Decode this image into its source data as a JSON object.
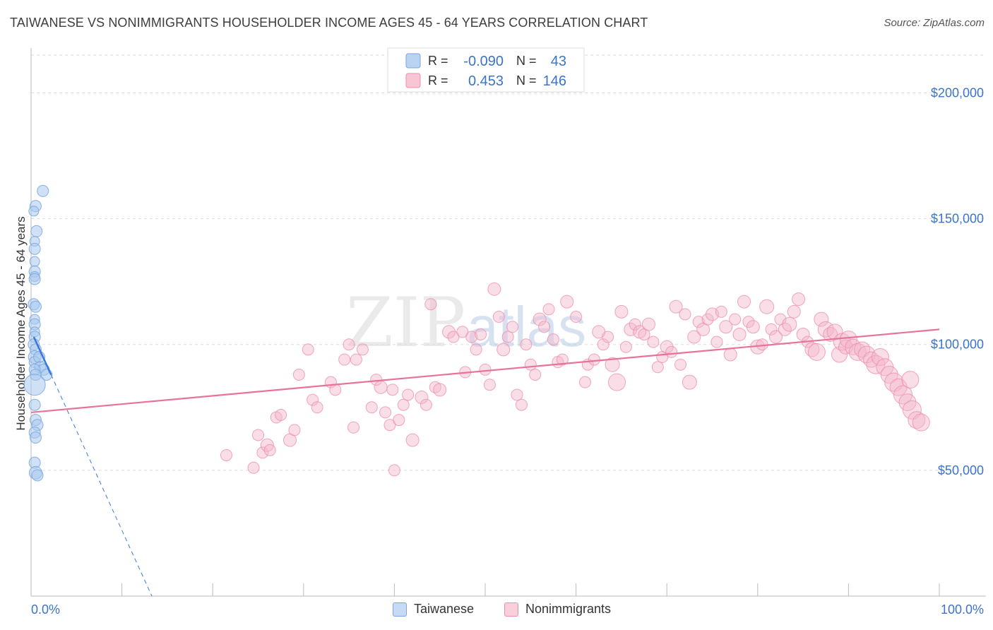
{
  "header": {
    "title": "TAIWANESE VS NONIMMIGRANTS HOUSEHOLDER INCOME AGES 45 - 64 YEARS CORRELATION CHART",
    "source": "Source: ZipAtlas.com"
  },
  "colors": {
    "blue_fill": "#a9c8ef",
    "blue_stroke": "#7aa7df",
    "blue_line": "#3b78d8",
    "pink_fill": "#f5b6c9",
    "pink_stroke": "#ee8fae",
    "pink_line": "#e8739a",
    "axis_text": "#3b74c9",
    "grid": "#dddddd"
  },
  "legend": {
    "rows": [
      {
        "r_label": "R =",
        "r_value": "-0.090",
        "n_label": "N =",
        "n_value": "43"
      },
      {
        "r_label": "R =",
        "r_value": "0.453",
        "n_label": "N =",
        "n_value": "146"
      }
    ]
  },
  "bottom_legend": [
    {
      "label": "Taiwanese"
    },
    {
      "label": "Nonimmigrants"
    }
  ],
  "chart_data": {
    "type": "scatter",
    "xlabel": "",
    "ylabel": "Householder Income Ages 45 - 64 years",
    "xlim": [
      0,
      100
    ],
    "ylim": [
      0,
      215000
    ],
    "x_tick_labels": [
      "0.0%",
      "100.0%"
    ],
    "y_ticks": [
      50000,
      100000,
      150000,
      200000
    ],
    "y_tick_labels": [
      "$50,000",
      "$100,000",
      "$150,000",
      "$200,000"
    ],
    "grid": true,
    "legend_position": "top-center",
    "watermark": "ZIPatlas",
    "series": [
      {
        "name": "Taiwanese",
        "r": -0.09,
        "n": 43,
        "trend": {
          "x": [
            0.3,
            2.2
          ],
          "y": [
            103000,
            88000
          ]
        },
        "trend_extension": {
          "x": [
            2.2,
            13.3
          ],
          "y": [
            88000,
            0
          ]
        },
        "points": [
          [
            1.3,
            161000,
            8
          ],
          [
            0.5,
            155000,
            8
          ],
          [
            0.3,
            153000,
            7
          ],
          [
            0.6,
            145000,
            8
          ],
          [
            0.4,
            141000,
            7
          ],
          [
            0.4,
            138000,
            8
          ],
          [
            0.4,
            133000,
            7
          ],
          [
            0.4,
            129000,
            8
          ],
          [
            0.4,
            127000,
            7
          ],
          [
            0.4,
            126000,
            8
          ],
          [
            0.3,
            116000,
            8
          ],
          [
            0.5,
            115000,
            8
          ],
          [
            0.4,
            110000,
            7
          ],
          [
            0.4,
            108000,
            8
          ],
          [
            0.4,
            105000,
            7
          ],
          [
            0.4,
            103000,
            8
          ],
          [
            0.3,
            100000,
            8
          ],
          [
            0.5,
            98000,
            8
          ],
          [
            0.4,
            95000,
            9
          ],
          [
            0.4,
            93000,
            8
          ],
          [
            0.9,
            95000,
            8
          ],
          [
            1.0,
            91000,
            8
          ],
          [
            1.4,
            90000,
            8
          ],
          [
            0.4,
            90000,
            8
          ],
          [
            0.5,
            88000,
            8
          ],
          [
            1.7,
            88000,
            8
          ],
          [
            0.4,
            84000,
            15
          ],
          [
            0.4,
            76000,
            8
          ],
          [
            0.5,
            70000,
            8
          ],
          [
            0.7,
            68000,
            8
          ],
          [
            0.4,
            65000,
            8
          ],
          [
            0.5,
            63000,
            8
          ],
          [
            0.4,
            53000,
            8
          ],
          [
            0.5,
            49000,
            9
          ],
          [
            0.7,
            48000,
            8
          ]
        ]
      },
      {
        "name": "Nonimmigrants",
        "r": 0.453,
        "n": 146,
        "trend": {
          "x": [
            0,
            100
          ],
          "y": [
            73000,
            106000
          ]
        },
        "points": [
          [
            21.5,
            56000,
            8
          ],
          [
            24.5,
            51000,
            8
          ],
          [
            25.0,
            64000,
            8
          ],
          [
            25.5,
            57000,
            8
          ],
          [
            26.0,
            60000,
            9
          ],
          [
            26.3,
            58000,
            8
          ],
          [
            27.0,
            71000,
            8
          ],
          [
            27.5,
            72000,
            8
          ],
          [
            28.5,
            62000,
            9
          ],
          [
            29.0,
            66000,
            8
          ],
          [
            29.5,
            88000,
            8
          ],
          [
            30.5,
            98000,
            8
          ],
          [
            31.0,
            78000,
            8
          ],
          [
            31.5,
            75000,
            8
          ],
          [
            33.0,
            85000,
            8
          ],
          [
            33.5,
            82000,
            8
          ],
          [
            34.5,
            94000,
            8
          ],
          [
            35.0,
            100000,
            8
          ],
          [
            35.5,
            67000,
            8
          ],
          [
            35.8,
            94000,
            8
          ],
          [
            36.5,
            98000,
            8
          ],
          [
            37.5,
            75000,
            8
          ],
          [
            38.0,
            86000,
            8
          ],
          [
            38.5,
            83000,
            9
          ],
          [
            39.0,
            73000,
            8
          ],
          [
            39.5,
            68000,
            8
          ],
          [
            39.8,
            82000,
            8
          ],
          [
            40.0,
            50000,
            8
          ],
          [
            40.5,
            70000,
            8
          ],
          [
            41.0,
            76000,
            8
          ],
          [
            41.5,
            80000,
            8
          ],
          [
            42.0,
            62000,
            9
          ],
          [
            43.0,
            79000,
            9
          ],
          [
            43.5,
            76000,
            8
          ],
          [
            44.0,
            116000,
            8
          ],
          [
            44.5,
            83000,
            8
          ],
          [
            45.0,
            82000,
            9
          ],
          [
            46.0,
            105000,
            9
          ],
          [
            46.5,
            103000,
            8
          ],
          [
            47.5,
            105000,
            8
          ],
          [
            47.8,
            89000,
            8
          ],
          [
            48.5,
            103000,
            8
          ],
          [
            49.0,
            98000,
            8
          ],
          [
            49.5,
            104000,
            8
          ],
          [
            50.0,
            90000,
            8
          ],
          [
            50.5,
            84000,
            8
          ],
          [
            51.0,
            122000,
            9
          ],
          [
            51.5,
            111000,
            8
          ],
          [
            52.0,
            98000,
            9
          ],
          [
            52.5,
            103000,
            8
          ],
          [
            53.0,
            107000,
            8
          ],
          [
            53.5,
            80000,
            8
          ],
          [
            54.0,
            76000,
            8
          ],
          [
            54.5,
            100000,
            8
          ],
          [
            55.0,
            92000,
            8
          ],
          [
            55.5,
            88000,
            8
          ],
          [
            56.0,
            110000,
            9
          ],
          [
            56.5,
            107000,
            8
          ],
          [
            57.0,
            114000,
            8
          ],
          [
            57.5,
            102000,
            8
          ],
          [
            58.0,
            93000,
            8
          ],
          [
            58.5,
            94000,
            8
          ],
          [
            59.0,
            117000,
            9
          ],
          [
            60.0,
            111000,
            8
          ],
          [
            61.0,
            85000,
            8
          ],
          [
            61.3,
            92000,
            8
          ],
          [
            62.0,
            94000,
            8
          ],
          [
            62.5,
            105000,
            9
          ],
          [
            63.0,
            100000,
            8
          ],
          [
            63.5,
            103000,
            8
          ],
          [
            64.0,
            92000,
            10
          ],
          [
            64.5,
            85000,
            12
          ],
          [
            65.0,
            113000,
            9
          ],
          [
            65.5,
            99000,
            8
          ],
          [
            66.0,
            106000,
            9
          ],
          [
            66.5,
            108000,
            8
          ],
          [
            67.0,
            105000,
            9
          ],
          [
            67.5,
            104000,
            8
          ],
          [
            68.0,
            108000,
            9
          ],
          [
            68.5,
            101000,
            8
          ],
          [
            69.0,
            91000,
            8
          ],
          [
            69.5,
            95000,
            8
          ],
          [
            70.0,
            99000,
            9
          ],
          [
            70.5,
            97000,
            8
          ],
          [
            71.0,
            115000,
            9
          ],
          [
            71.5,
            92000,
            8
          ],
          [
            72.0,
            112000,
            8
          ],
          [
            72.5,
            85000,
            10
          ],
          [
            73.0,
            103000,
            9
          ],
          [
            73.5,
            109000,
            8
          ],
          [
            74.0,
            106000,
            9
          ],
          [
            74.5,
            110000,
            8
          ],
          [
            75.0,
            112000,
            9
          ],
          [
            75.5,
            101000,
            8
          ],
          [
            76.0,
            113000,
            8
          ],
          [
            76.5,
            107000,
            9
          ],
          [
            77.0,
            96000,
            9
          ],
          [
            77.5,
            110000,
            8
          ],
          [
            78.0,
            104000,
            9
          ],
          [
            78.5,
            117000,
            9
          ],
          [
            79.0,
            109000,
            8
          ],
          [
            79.5,
            107000,
            9
          ],
          [
            80.0,
            99000,
            10
          ],
          [
            80.5,
            100000,
            8
          ],
          [
            81.0,
            115000,
            10
          ],
          [
            81.5,
            106000,
            8
          ],
          [
            82.0,
            103000,
            9
          ],
          [
            82.5,
            110000,
            8
          ],
          [
            83.0,
            106000,
            9
          ],
          [
            83.5,
            108000,
            10
          ],
          [
            84.0,
            113000,
            9
          ],
          [
            84.5,
            118000,
            9
          ],
          [
            85.0,
            104000,
            9
          ],
          [
            85.5,
            101000,
            8
          ],
          [
            86.0,
            98000,
            10
          ],
          [
            86.5,
            97000,
            12
          ],
          [
            87.0,
            110000,
            10
          ],
          [
            87.5,
            106000,
            11
          ],
          [
            88.0,
            104000,
            10
          ],
          [
            88.5,
            105000,
            11
          ],
          [
            89.0,
            96000,
            11
          ],
          [
            89.3,
            101000,
            12
          ],
          [
            89.7,
            99000,
            10
          ],
          [
            90.0,
            102000,
            12
          ],
          [
            90.5,
            99000,
            11
          ],
          [
            91.0,
            97000,
            12
          ],
          [
            91.5,
            98000,
            11
          ],
          [
            92.0,
            96000,
            12
          ],
          [
            92.5,
            94000,
            11
          ],
          [
            93.0,
            92000,
            13
          ],
          [
            93.5,
            95000,
            12
          ],
          [
            94.0,
            91000,
            12
          ],
          [
            94.5,
            88000,
            12
          ],
          [
            95.0,
            85000,
            13
          ],
          [
            95.5,
            83000,
            12
          ],
          [
            96.0,
            80000,
            13
          ],
          [
            96.5,
            77000,
            12
          ],
          [
            97.0,
            74000,
            13
          ],
          [
            97.5,
            70000,
            12
          ],
          [
            98.0,
            69000,
            12
          ],
          [
            96.8,
            86000,
            12
          ]
        ]
      }
    ]
  }
}
